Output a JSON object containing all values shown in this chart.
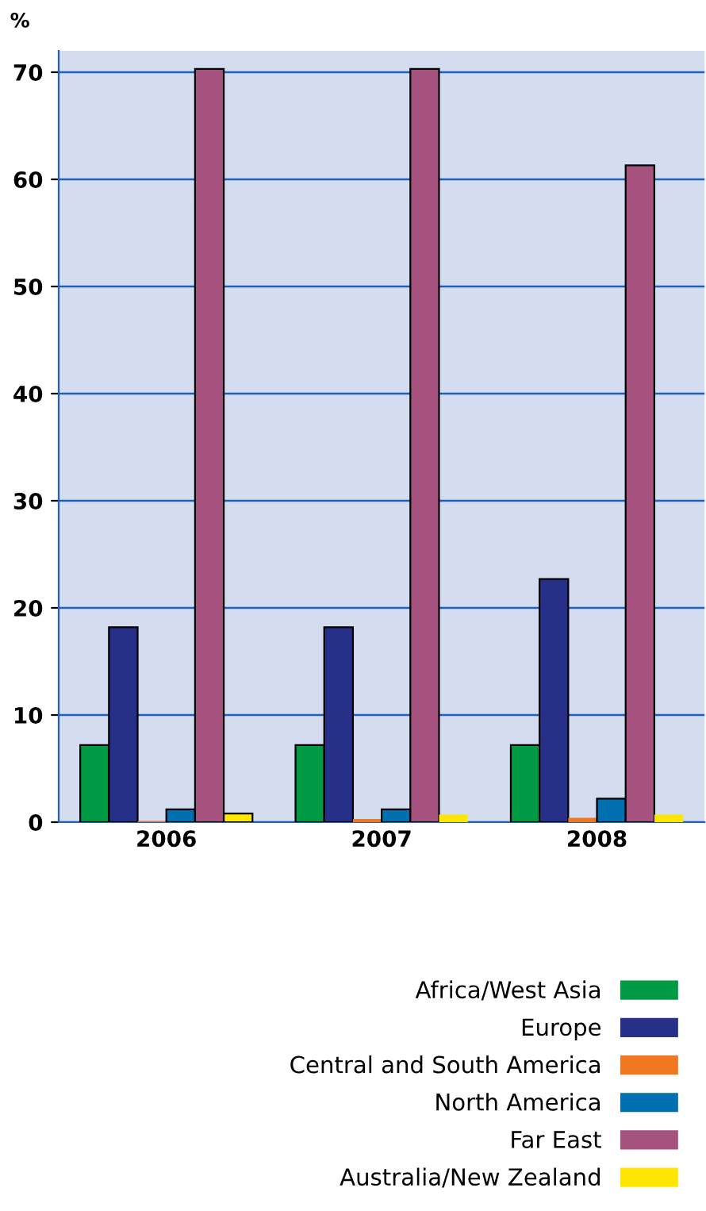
{
  "chart_data": {
    "type": "bar",
    "ylabel": "%",
    "categories": [
      "2006",
      "2007",
      "2008"
    ],
    "series": [
      {
        "name": "Africa/West Asia",
        "color": "#009a44",
        "values": [
          7.2,
          7.2,
          7.2
        ]
      },
      {
        "name": "Europe",
        "color": "#263089",
        "values": [
          18.2,
          18.2,
          22.7
        ]
      },
      {
        "name": "Central and South America",
        "color": "#f07820",
        "values": [
          0.1,
          0.3,
          0.4
        ]
      },
      {
        "name": "North America",
        "color": "#0070b0",
        "values": [
          1.2,
          1.2,
          2.2
        ]
      },
      {
        "name": "Far East",
        "color": "#a6527f",
        "values": [
          70.3,
          70.3,
          61.3
        ]
      },
      {
        "name": "Australia/New Zealand",
        "color": "#ffe600",
        "values": [
          0.8,
          0.7,
          0.7
        ]
      }
    ],
    "ylim": [
      0,
      72
    ],
    "yticks": [
      0,
      10,
      20,
      30,
      40,
      50,
      60,
      70
    ],
    "grid": "y",
    "legend": "bottom right"
  }
}
